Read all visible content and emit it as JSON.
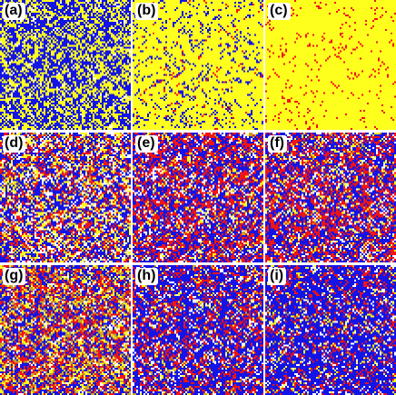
{
  "colors": {
    "background": "#ffffff",
    "blue": "#1414e6",
    "yellow": "#ffff1e",
    "red": "#f01414",
    "white": "#ffffff",
    "olive": "#c8a028"
  },
  "panels": [
    {
      "label": "(a)",
      "composition": {
        "blue": 0.52,
        "yellow": 0.44,
        "white": 0.04,
        "red": 0.0,
        "olive": 0.0
      }
    },
    {
      "label": "(b)",
      "composition": {
        "yellow": 0.84,
        "blue": 0.13,
        "red": 0.03,
        "white": 0.0,
        "olive": 0.0
      }
    },
    {
      "label": "(c)",
      "composition": {
        "yellow": 0.94,
        "red": 0.06,
        "blue": 0.0,
        "white": 0.0,
        "olive": 0.0
      }
    },
    {
      "label": "(d)",
      "composition": {
        "blue": 0.4,
        "red": 0.22,
        "yellow": 0.18,
        "white": 0.16,
        "olive": 0.04
      }
    },
    {
      "label": "(e)",
      "composition": {
        "blue": 0.42,
        "red": 0.36,
        "white": 0.12,
        "yellow": 0.08,
        "olive": 0.02
      }
    },
    {
      "label": "(f)",
      "composition": {
        "blue": 0.44,
        "red": 0.34,
        "white": 0.12,
        "yellow": 0.08,
        "olive": 0.02
      }
    },
    {
      "label": "(g)",
      "composition": {
        "blue": 0.36,
        "red": 0.28,
        "yellow": 0.14,
        "white": 0.08,
        "olive": 0.14
      }
    },
    {
      "label": "(h)",
      "composition": {
        "blue": 0.56,
        "red": 0.24,
        "white": 0.12,
        "yellow": 0.06,
        "olive": 0.02
      }
    },
    {
      "label": "(i)",
      "composition": {
        "blue": 0.64,
        "red": 0.18,
        "white": 0.1,
        "yellow": 0.06,
        "olive": 0.02
      }
    }
  ]
}
